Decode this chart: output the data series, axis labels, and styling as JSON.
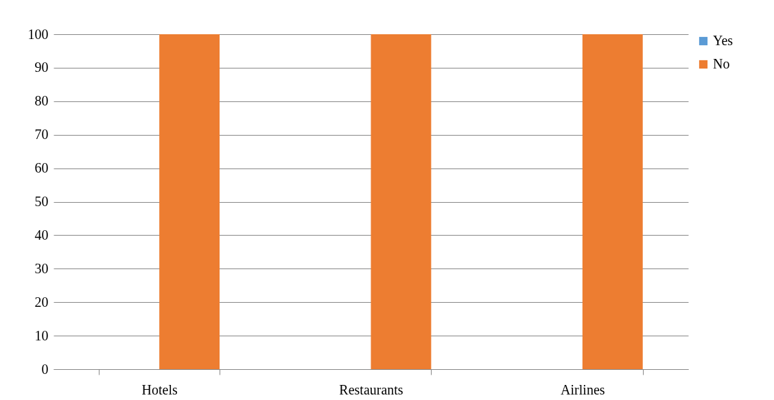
{
  "chart_data": {
    "type": "bar",
    "categories": [
      "Hotels",
      "Restaurants",
      "Airlines"
    ],
    "series": [
      {
        "name": "Yes",
        "color": "#5b9bd5",
        "values": [
          0,
          0,
          0
        ]
      },
      {
        "name": "No",
        "color": "#ed7d31",
        "values": [
          100,
          100,
          100
        ]
      }
    ],
    "ylim": [
      0,
      100
    ],
    "yticks": [
      0,
      10,
      20,
      30,
      40,
      50,
      60,
      70,
      80,
      90,
      100
    ],
    "grid": "y",
    "legend": "right"
  }
}
